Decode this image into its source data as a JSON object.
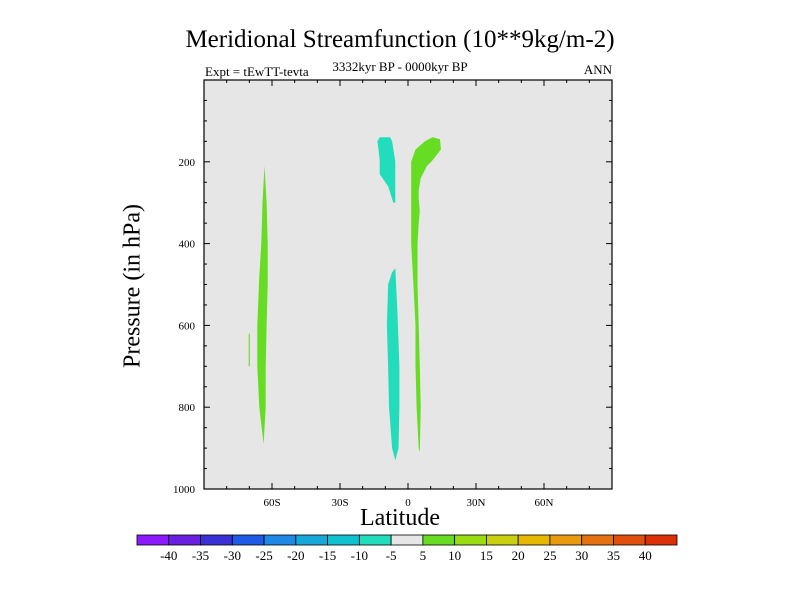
{
  "chart_data": {
    "type": "contour",
    "title": "Meridional Streamfunction (10**9kg/m-2)",
    "subtitle_left": "Expt = tEwTT-tevta",
    "subtitle_center": "3332kyr BP - 0000kyr BP",
    "subtitle_right": "ANN",
    "xlabel": "Latitude",
    "ylabel": "Pressure (in hPa)",
    "xlim": [
      -90,
      90
    ],
    "ylim": [
      1000,
      0
    ],
    "x_ticks": [
      {
        "value": -60,
        "label": "60S"
      },
      {
        "value": -30,
        "label": "30S"
      },
      {
        "value": 0,
        "label": "0"
      },
      {
        "value": 30,
        "label": "30N"
      },
      {
        "value": 60,
        "label": "60N"
      }
    ],
    "y_ticks": [
      {
        "value": 200,
        "label": "200"
      },
      {
        "value": 400,
        "label": "400"
      },
      {
        "value": 600,
        "label": "600"
      },
      {
        "value": 800,
        "label": "800"
      },
      {
        "value": 1000,
        "label": "1000"
      }
    ],
    "background_color": "#e6e6e6",
    "contour_regions": [
      {
        "name": "southern-midlatitude-positive-cell",
        "level": 5,
        "color": "#66dd22",
        "points": [
          [
            -63.7,
            890
          ],
          [
            -65.6,
            800
          ],
          [
            -66.5,
            700
          ],
          [
            -66.5,
            600
          ],
          [
            -65.6,
            480
          ],
          [
            -64.7,
            400
          ],
          [
            -64.2,
            300
          ],
          [
            -63.3,
            210
          ],
          [
            -62.4,
            300
          ],
          [
            -61.9,
            400
          ],
          [
            -61.9,
            500
          ],
          [
            -62.4,
            600
          ],
          [
            -62.8,
            700
          ],
          [
            -62.8,
            800
          ]
        ]
      },
      {
        "name": "southern-thin-positive-sliver",
        "level": 5,
        "color": "#66dd22",
        "points": [
          [
            -70.3,
            620
          ],
          [
            -70.3,
            700
          ],
          [
            -69.8,
            700
          ],
          [
            -69.8,
            620
          ]
        ]
      },
      {
        "name": "upper-equatorial-negative-cell",
        "level": -10,
        "color": "#22ddbb",
        "points": [
          [
            -12.5,
            195
          ],
          [
            -13.5,
            150
          ],
          [
            -12.5,
            140
          ],
          [
            -7.9,
            140
          ],
          [
            -7.0,
            150
          ],
          [
            -5.6,
            200
          ],
          [
            -5.6,
            300
          ],
          [
            -6.5,
            300
          ],
          [
            -8.8,
            260
          ],
          [
            -12.5,
            230
          ]
        ]
      },
      {
        "name": "lower-equatorial-negative-cell",
        "level": -10,
        "color": "#22ddbb",
        "points": [
          [
            -5.6,
            930
          ],
          [
            -7.0,
            900
          ],
          [
            -8.4,
            800
          ],
          [
            -8.8,
            700
          ],
          [
            -9.3,
            600
          ],
          [
            -8.8,
            500
          ],
          [
            -7.0,
            470
          ],
          [
            -5.6,
            460
          ],
          [
            -4.7,
            560
          ],
          [
            -3.8,
            700
          ],
          [
            -3.8,
            800
          ],
          [
            -4.2,
            900
          ]
        ]
      },
      {
        "name": "equatorial-positive-cell",
        "level": 10,
        "color": "#66dd22",
        "points": [
          [
            4.7,
            900
          ],
          [
            3.8,
            800
          ],
          [
            3.3,
            700
          ],
          [
            3.3,
            600
          ],
          [
            2.4,
            500
          ],
          [
            1.4,
            400
          ],
          [
            1.4,
            300
          ],
          [
            1.4,
            200
          ],
          [
            3.3,
            170
          ],
          [
            7.5,
            150
          ],
          [
            10.8,
            140
          ],
          [
            14.1,
            145
          ],
          [
            14.5,
            170
          ],
          [
            11.7,
            190
          ],
          [
            10.3,
            200
          ],
          [
            8.4,
            210
          ],
          [
            5.6,
            240
          ],
          [
            4.7,
            270
          ],
          [
            4.7,
            290
          ],
          [
            5.2,
            320
          ],
          [
            4.7,
            350
          ],
          [
            4.2,
            400
          ],
          [
            4.2,
            500
          ],
          [
            4.7,
            600
          ],
          [
            5.2,
            700
          ],
          [
            5.6,
            800
          ],
          [
            5.2,
            910
          ]
        ]
      }
    ],
    "colorbar": {
      "labels": [
        "-40",
        "-35",
        "-30",
        "-25",
        "-20",
        "-15",
        "-10",
        "-5",
        "5",
        "10",
        "15",
        "20",
        "25",
        "30",
        "35",
        "40"
      ],
      "colors": [
        "#8c1aff",
        "#6b1fe0",
        "#3b2fd6",
        "#1f5ae6",
        "#1e88e5",
        "#16a8d8",
        "#10c2d0",
        "#22ddbb",
        "#e6e6e6",
        "#66dd22",
        "#99dd11",
        "#c8d010",
        "#e6b800",
        "#ea9a0c",
        "#e47210",
        "#e0500c",
        "#dc3008"
      ]
    }
  }
}
